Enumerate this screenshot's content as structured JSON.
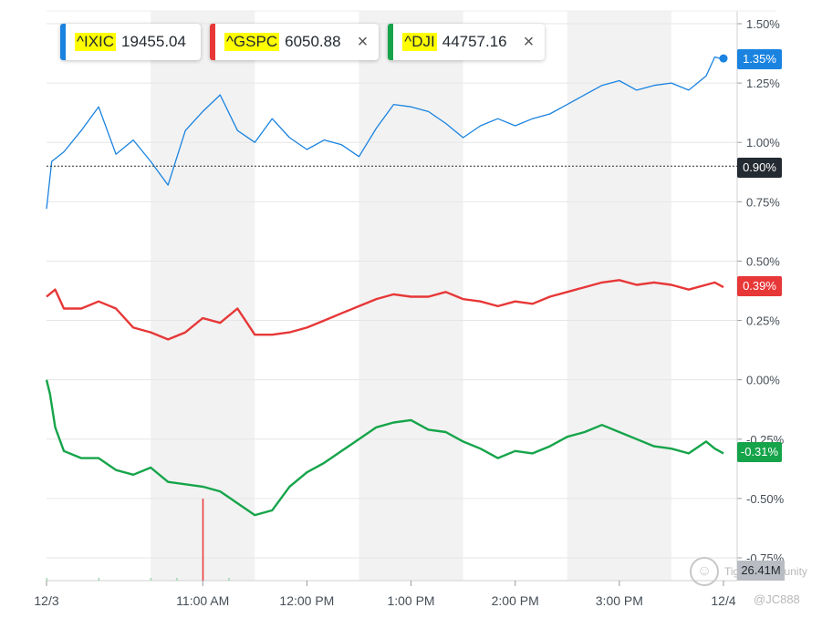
{
  "legend": [
    {
      "symbol": "^IXIC",
      "value": "19455.04",
      "color": "#1a83e0",
      "closable": false
    },
    {
      "symbol": "^GSPC",
      "value": "6050.88",
      "color": "#e73737",
      "closable": true
    },
    {
      "symbol": "^DJI",
      "value": "44757.16",
      "color": "#16a44a",
      "closable": true
    }
  ],
  "close_glyph": "×",
  "badges": {
    "ixic": "1.35%",
    "gspc": "0.39%",
    "dji": "-0.31%",
    "prev_close": "0.90%",
    "volume": "26.41M"
  },
  "watermark": {
    "text": "Tiger Community",
    "user": "@JC888"
  },
  "chart_data": {
    "type": "line",
    "title": "",
    "xlabel": "",
    "ylabel": "",
    "x_ticks": [
      "12/3",
      "11:00 AM",
      "12:00 PM",
      "1:00 PM",
      "2:00 PM",
      "3:00 PM",
      "12/4"
    ],
    "y_ticks": [
      "1.50%",
      "1.25%",
      "1.00%",
      "0.75%",
      "0.50%",
      "0.25%",
      "0.00%",
      "-0.25%",
      "-0.50%",
      "-0.75%"
    ],
    "ylim": [
      -0.75,
      1.5
    ],
    "time_range": [
      "09:30",
      "16:00"
    ],
    "prev_close_pct": 0.9,
    "shaded_hours": [
      "10:30-11:30",
      "12:30-13:30",
      "14:30-15:30"
    ],
    "grid": true,
    "series": [
      {
        "name": "^IXIC",
        "color": "#1a83e0",
        "x": [
          "09:30",
          "09:33",
          "09:40",
          "09:50",
          "10:00",
          "10:10",
          "10:20",
          "10:30",
          "10:40",
          "10:50",
          "11:00",
          "11:10",
          "11:20",
          "11:30",
          "11:40",
          "11:50",
          "12:00",
          "12:10",
          "12:20",
          "12:30",
          "12:40",
          "12:50",
          "13:00",
          "13:10",
          "13:20",
          "13:30",
          "13:40",
          "13:50",
          "14:00",
          "14:10",
          "14:20",
          "14:30",
          "14:40",
          "14:50",
          "15:00",
          "15:10",
          "15:20",
          "15:30",
          "15:40",
          "15:50",
          "15:55",
          "16:00"
        ],
        "values": [
          0.72,
          0.92,
          0.96,
          1.05,
          1.15,
          0.95,
          1.01,
          0.92,
          0.82,
          1.05,
          1.13,
          1.2,
          1.05,
          1.0,
          1.1,
          1.02,
          0.97,
          1.01,
          0.99,
          0.94,
          1.06,
          1.16,
          1.15,
          1.13,
          1.08,
          1.02,
          1.07,
          1.1,
          1.07,
          1.1,
          1.12,
          1.16,
          1.2,
          1.24,
          1.26,
          1.22,
          1.24,
          1.25,
          1.22,
          1.28,
          1.36,
          1.35
        ]
      },
      {
        "name": "^GSPC",
        "color": "#e73737",
        "x": [
          "09:30",
          "09:35",
          "09:40",
          "09:50",
          "10:00",
          "10:10",
          "10:20",
          "10:30",
          "10:40",
          "10:50",
          "11:00",
          "11:10",
          "11:20",
          "11:30",
          "11:40",
          "11:50",
          "12:00",
          "12:10",
          "12:20",
          "12:30",
          "12:40",
          "12:50",
          "13:00",
          "13:10",
          "13:20",
          "13:30",
          "13:40",
          "13:50",
          "14:00",
          "14:10",
          "14:20",
          "14:30",
          "14:40",
          "14:50",
          "15:00",
          "15:10",
          "15:20",
          "15:30",
          "15:40",
          "15:50",
          "15:55",
          "16:00"
        ],
        "values": [
          0.35,
          0.38,
          0.3,
          0.3,
          0.33,
          0.3,
          0.22,
          0.2,
          0.17,
          0.2,
          0.26,
          0.24,
          0.3,
          0.19,
          0.19,
          0.2,
          0.22,
          0.25,
          0.28,
          0.31,
          0.34,
          0.36,
          0.35,
          0.35,
          0.37,
          0.34,
          0.33,
          0.31,
          0.33,
          0.32,
          0.35,
          0.37,
          0.39,
          0.41,
          0.42,
          0.4,
          0.41,
          0.4,
          0.38,
          0.4,
          0.41,
          0.39
        ]
      },
      {
        "name": "^DJI",
        "color": "#16a44a",
        "x": [
          "09:30",
          "09:32",
          "09:35",
          "09:40",
          "09:50",
          "10:00",
          "10:10",
          "10:20",
          "10:30",
          "10:40",
          "10:50",
          "11:00",
          "11:10",
          "11:20",
          "11:30",
          "11:40",
          "11:50",
          "12:00",
          "12:10",
          "12:20",
          "12:30",
          "12:40",
          "12:50",
          "13:00",
          "13:10",
          "13:20",
          "13:30",
          "13:40",
          "13:50",
          "14:00",
          "14:10",
          "14:20",
          "14:30",
          "14:40",
          "14:50",
          "15:00",
          "15:10",
          "15:20",
          "15:30",
          "15:40",
          "15:50",
          "15:55",
          "16:00"
        ],
        "values": [
          0.0,
          -0.06,
          -0.2,
          -0.3,
          -0.33,
          -0.33,
          -0.38,
          -0.4,
          -0.37,
          -0.43,
          -0.44,
          -0.45,
          -0.47,
          -0.52,
          -0.57,
          -0.55,
          -0.45,
          -0.39,
          -0.35,
          -0.3,
          -0.25,
          -0.2,
          -0.18,
          -0.17,
          -0.21,
          -0.22,
          -0.26,
          -0.29,
          -0.33,
          -0.3,
          -0.31,
          -0.28,
          -0.24,
          -0.22,
          -0.19,
          -0.22,
          -0.25,
          -0.28,
          -0.29,
          -0.31,
          -0.26,
          -0.29,
          -0.31
        ]
      }
    ],
    "volume": {
      "x": [
        "09:30",
        "10:00",
        "10:30",
        "10:45",
        "11:00",
        "11:15"
      ],
      "values": [
        2,
        2,
        2,
        2,
        60,
        2
      ]
    }
  }
}
